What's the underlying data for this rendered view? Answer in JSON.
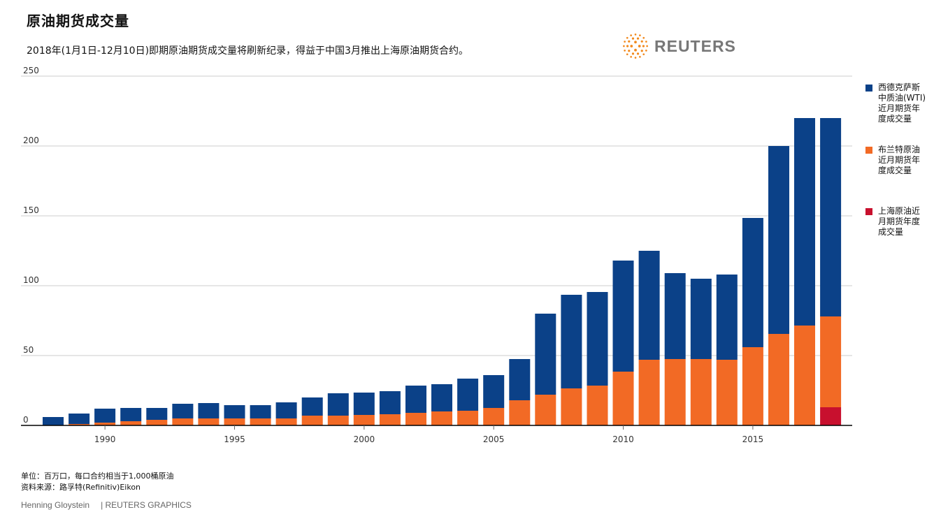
{
  "header": {
    "title": "原油期货成交量",
    "subtitle": "2018年(1月1日-12月10日)即期原油期货成交量将刷新纪录，得益于中国3月推出上海原油期货合约。",
    "logo_text": "REUTERS"
  },
  "footer": {
    "unit_note": "单位：百万口，每口合约相当于1,000桶原油",
    "source_note": "资料来源：路孚特(Refinitiv)Eikon",
    "author": "Henning Gloystein",
    "brand": "| REUTERS GRAPHICS"
  },
  "colors": {
    "wti": "#0b4188",
    "brent": "#f26a25",
    "shanghai": "#c8102e",
    "grid": "#cccccc",
    "axis": "#000000"
  },
  "chart_data": {
    "type": "bar",
    "stacked": true,
    "title": "原油期货成交量",
    "ylim": [
      0,
      250
    ],
    "y_ticks": [
      0,
      50,
      100,
      150,
      200,
      250
    ],
    "x_ticks": [
      1990,
      1995,
      2000,
      2005,
      2010,
      2015
    ],
    "grid": true,
    "legend_position": "right",
    "categories": [
      1988,
      1989,
      1990,
      1991,
      1992,
      1993,
      1994,
      1995,
      1996,
      1997,
      1998,
      1999,
      2000,
      2001,
      2002,
      2003,
      2004,
      2005,
      2006,
      2007,
      2008,
      2009,
      2010,
      2011,
      2012,
      2013,
      2014,
      2015,
      2016,
      2017,
      2018
    ],
    "series": [
      {
        "name": "上海原油近月期货年度成交量",
        "color_key": "shanghai",
        "values": [
          0,
          0,
          0,
          0,
          0,
          0,
          0,
          0,
          0,
          0,
          0,
          0,
          0,
          0,
          0,
          0,
          0,
          0,
          0,
          0,
          0,
          0,
          0,
          0,
          0,
          0,
          0,
          0,
          0,
          0,
          13
        ]
      },
      {
        "name": "布兰特原油近月期货年度成交量",
        "color_key": "brent",
        "values": [
          0,
          1,
          2,
          3,
          4,
          5,
          5,
          5,
          5,
          5,
          7,
          7,
          7.5,
          8,
          9,
          10,
          10.5,
          12.5,
          18,
          22,
          26.5,
          28.5,
          38.5,
          47,
          47.5,
          47.5,
          47,
          56,
          65.5,
          71.5,
          65
        ]
      },
      {
        "name": "西德克萨斯中质油(WTI)近月期货年度成交量",
        "color_key": "wti",
        "values": [
          6,
          7.5,
          10,
          9.5,
          8.5,
          10.5,
          11,
          9.5,
          9.5,
          11.5,
          13,
          16,
          16,
          16.5,
          19.5,
          19.5,
          23,
          23.5,
          29.5,
          58,
          67,
          67,
          79.5,
          78,
          61.5,
          57.5,
          61,
          92.5,
          134.5,
          148.5,
          142
        ]
      }
    ]
  },
  "legend": {
    "wti": "西德克萨斯中质油(WTI)近月期货年度成交量",
    "brent": "布兰特原油近月期货年度成交量",
    "shanghai": "上海原油近月期货年度成交量"
  }
}
